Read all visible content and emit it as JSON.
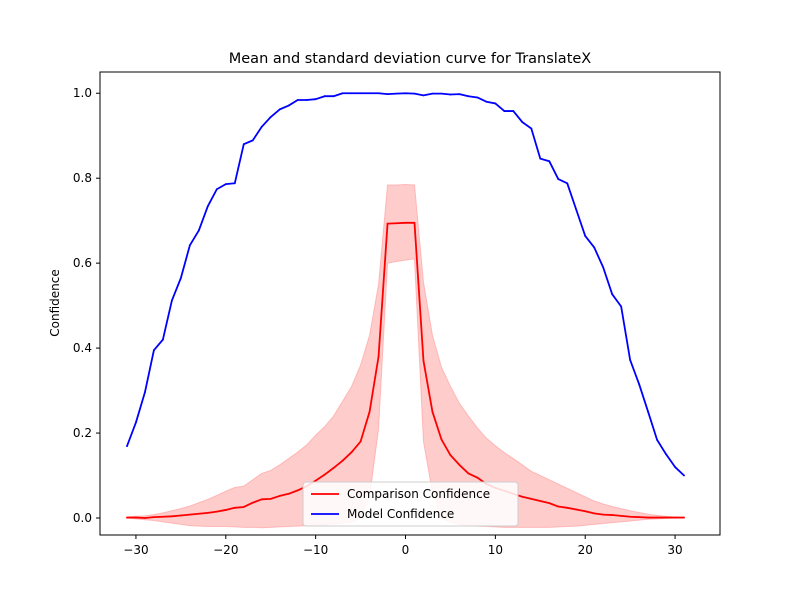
{
  "chart_data": {
    "type": "line",
    "title": "Mean and standard deviation curve for TranslateX",
    "xlabel": "",
    "ylabel": "Confidence",
    "xlim": [
      -34,
      35
    ],
    "ylim": [
      -0.04,
      1.05
    ],
    "xticks": [
      -30,
      -20,
      -10,
      0,
      10,
      20,
      30
    ],
    "xtick_labels": [
      "−30",
      "−20",
      "−10",
      "0",
      "10",
      "20",
      "30"
    ],
    "yticks": [
      0.0,
      0.2,
      0.4,
      0.6,
      0.8,
      1.0
    ],
    "ytick_labels": [
      "0.0",
      "0.2",
      "0.4",
      "0.6",
      "0.8",
      "1.0"
    ],
    "grid": false,
    "legend_position": "bottom-center",
    "x": [
      -31,
      -30,
      -29,
      -28,
      -27,
      -26,
      -25,
      -24,
      -23,
      -22,
      -21,
      -20,
      -19,
      -18,
      -17,
      -16,
      -15,
      -14,
      -13,
      -12,
      -11,
      -10,
      -9,
      -8,
      -7,
      -6,
      -5,
      -4,
      -3,
      -2,
      -1,
      0,
      1,
      2,
      3,
      4,
      5,
      6,
      7,
      8,
      9,
      10,
      11,
      12,
      13,
      14,
      15,
      16,
      17,
      18,
      19,
      20,
      21,
      22,
      23,
      24,
      25,
      26,
      27,
      28,
      29,
      30,
      31
    ],
    "series": [
      {
        "name": "Comparison Confidence",
        "color": "#ff0000",
        "band_color": "#ff9999",
        "values": [
          0.001,
          0.001,
          0.0,
          0.002,
          0.003,
          0.004,
          0.006,
          0.008,
          0.01,
          0.012,
          0.015,
          0.019,
          0.024,
          0.026,
          0.036,
          0.044,
          0.045,
          0.052,
          0.057,
          0.065,
          0.075,
          0.088,
          0.102,
          0.118,
          0.135,
          0.155,
          0.18,
          0.25,
          0.38,
          0.693,
          0.694,
          0.695,
          0.695,
          0.37,
          0.25,
          0.185,
          0.148,
          0.125,
          0.105,
          0.095,
          0.08,
          0.071,
          0.064,
          0.057,
          0.05,
          0.045,
          0.04,
          0.035,
          0.027,
          0.024,
          0.02,
          0.016,
          0.011,
          0.008,
          0.007,
          0.005,
          0.003,
          0.002,
          0.001,
          0.001,
          0.001,
          0.001,
          0.001
        ],
        "lower": [
          0.0,
          -0.002,
          -0.004,
          -0.006,
          -0.009,
          -0.012,
          -0.015,
          -0.018,
          -0.019,
          -0.02,
          -0.02,
          -0.02,
          -0.021,
          -0.022,
          -0.022,
          -0.023,
          -0.022,
          -0.021,
          -0.02,
          -0.019,
          -0.018,
          -0.017,
          -0.016,
          -0.014,
          -0.012,
          -0.01,
          0.0,
          0.05,
          0.21,
          0.6,
          0.604,
          0.607,
          0.61,
          0.18,
          0.06,
          0.0,
          -0.01,
          -0.015,
          -0.018,
          -0.019,
          -0.02,
          -0.021,
          -0.022,
          -0.022,
          -0.022,
          -0.022,
          -0.022,
          -0.022,
          -0.021,
          -0.02,
          -0.019,
          -0.017,
          -0.015,
          -0.013,
          -0.011,
          -0.009,
          -0.007,
          -0.005,
          -0.003,
          -0.002,
          -0.001,
          0.0,
          0.001
        ],
        "upper": [
          0.002,
          0.004,
          0.005,
          0.008,
          0.012,
          0.017,
          0.022,
          0.028,
          0.036,
          0.044,
          0.053,
          0.063,
          0.072,
          0.075,
          0.09,
          0.105,
          0.112,
          0.125,
          0.14,
          0.155,
          0.172,
          0.195,
          0.215,
          0.24,
          0.275,
          0.31,
          0.36,
          0.43,
          0.55,
          0.784,
          0.784,
          0.785,
          0.784,
          0.555,
          0.43,
          0.355,
          0.31,
          0.27,
          0.24,
          0.212,
          0.188,
          0.17,
          0.154,
          0.14,
          0.125,
          0.11,
          0.1,
          0.09,
          0.08,
          0.07,
          0.06,
          0.05,
          0.04,
          0.033,
          0.027,
          0.022,
          0.017,
          0.013,
          0.009,
          0.006,
          0.004,
          0.002,
          0.001
        ]
      },
      {
        "name": "Model Confidence",
        "color": "#0000ff",
        "values": [
          0.169,
          0.225,
          0.296,
          0.395,
          0.42,
          0.512,
          0.565,
          0.642,
          0.677,
          0.734,
          0.774,
          0.786,
          0.788,
          0.88,
          0.889,
          0.921,
          0.944,
          0.962,
          0.971,
          0.984,
          0.984,
          0.986,
          0.993,
          0.993,
          1.0,
          1.0,
          1.0,
          1.0,
          1.0,
          0.998,
          0.999,
          1.0,
          0.999,
          0.995,
          0.999,
          0.999,
          0.997,
          0.998,
          0.993,
          0.99,
          0.98,
          0.976,
          0.958,
          0.958,
          0.932,
          0.917,
          0.846,
          0.84,
          0.798,
          0.788,
          0.726,
          0.664,
          0.637,
          0.59,
          0.527,
          0.498,
          0.372,
          0.315,
          0.25,
          0.184,
          0.15,
          0.12,
          0.1
        ]
      }
    ]
  }
}
